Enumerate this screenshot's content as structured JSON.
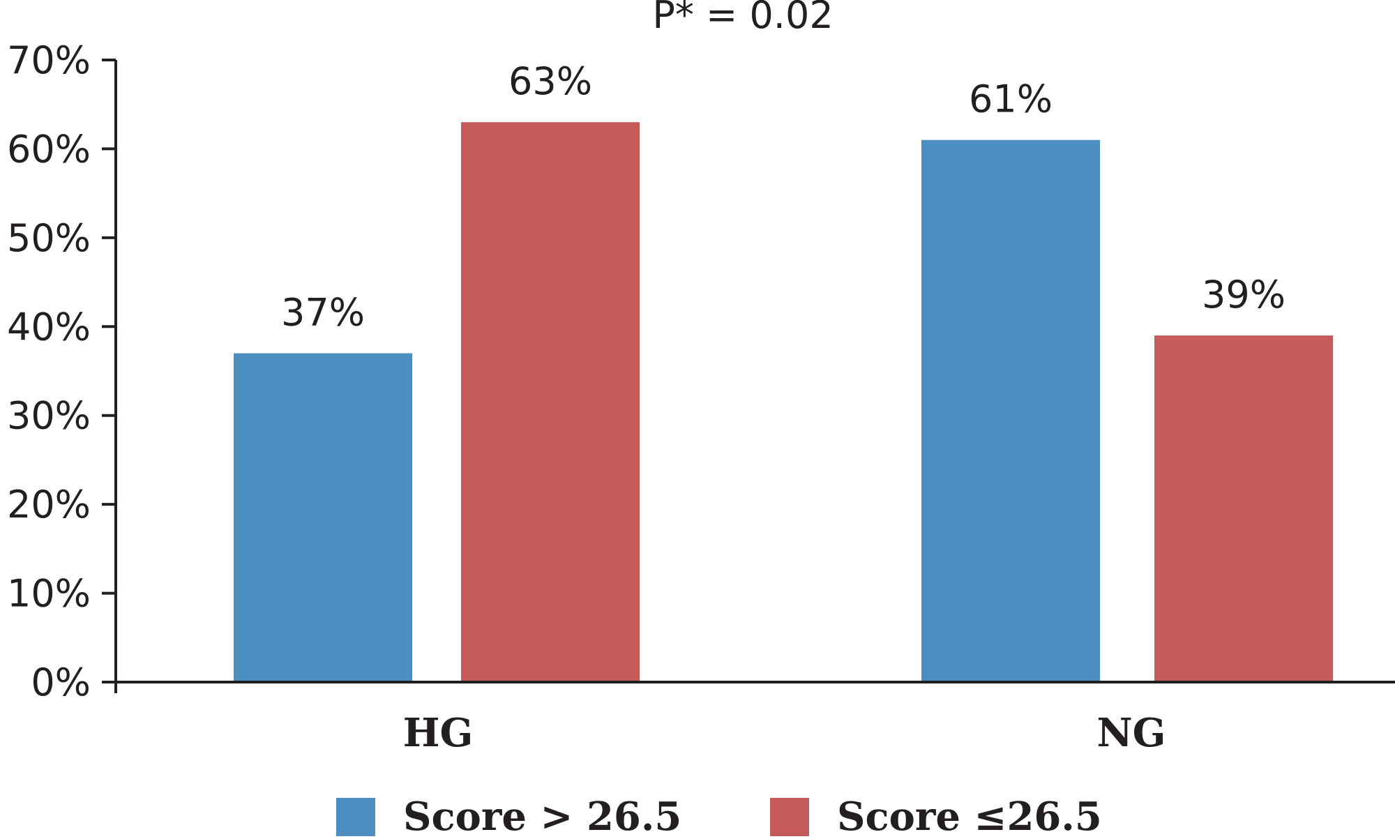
{
  "chart_data": {
    "type": "bar",
    "title": "P* = 0.02",
    "xlabel": "",
    "ylabel": "",
    "categories": [
      "HG",
      "NG"
    ],
    "series": [
      {
        "name": "Score > 26.5",
        "color": "#4d8ec0",
        "values": [
          37,
          61
        ],
        "labels": [
          "37%",
          "61%"
        ]
      },
      {
        "name": "Score ≤26.5",
        "color": "#c55b5a",
        "values": [
          63,
          39
        ],
        "labels": [
          "63%",
          "39%"
        ]
      }
    ],
    "ylim": [
      0,
      70
    ],
    "yticks": [
      0,
      10,
      20,
      30,
      40,
      50,
      60,
      70
    ],
    "ytick_labels": [
      "0%",
      "10%",
      "20%",
      "30%",
      "40%",
      "50%",
      "60%",
      "70%"
    ],
    "grid": false,
    "legend_position": "bottom"
  }
}
